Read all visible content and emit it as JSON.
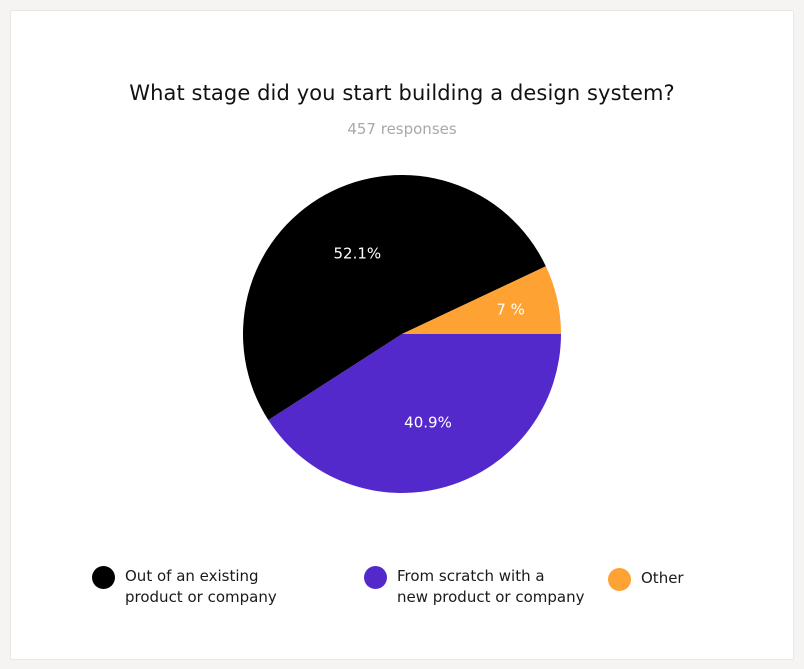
{
  "title": "What stage did you start building a design system?",
  "subtitle": "457 responses",
  "chart_data": {
    "type": "pie",
    "title": "What stage did you start building a design system?",
    "subtitle": "457 responses",
    "slices": [
      {
        "label": "Out of an existing\nproduct or company",
        "value": 52.1,
        "display": "52.1%",
        "color": "#000000"
      },
      {
        "label": "From scratch with a\nnew product or company",
        "value": 40.9,
        "display": "40.9%",
        "color": "#5429cc"
      },
      {
        "label": "Other",
        "value": 7,
        "display": "7 %",
        "color": "#fea233"
      }
    ],
    "legend_position": "bottom"
  }
}
